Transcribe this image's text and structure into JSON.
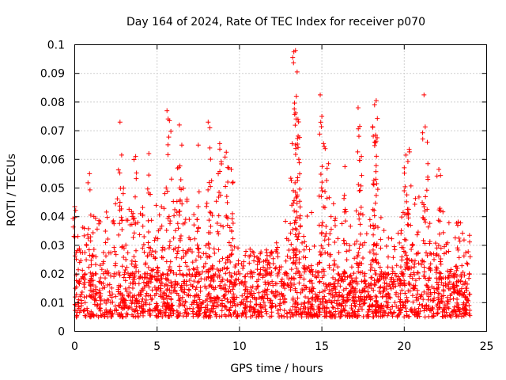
{
  "chart_data": {
    "type": "scatter",
    "title": "Day 164 of 2024, Rate Of TEC Index for receiver p070",
    "xlabel": "GPS time / hours",
    "ylabel": "ROTI / TECUs",
    "xlim": [
      0,
      25
    ],
    "ylim": [
      0,
      0.1
    ],
    "xticks": [
      0,
      5,
      10,
      15,
      20,
      25
    ],
    "xtick_labels": [
      "0",
      "5",
      "10",
      "15",
      "20",
      "25"
    ],
    "yticks": [
      0,
      0.01,
      0.02,
      0.03,
      0.04,
      0.05,
      0.06,
      0.07,
      0.08,
      0.09,
      0.1
    ],
    "ytick_labels": [
      "0",
      "0.01",
      "0.02",
      "0.03",
      "0.04",
      "0.05",
      "0.06",
      "0.07",
      "0.08",
      "0.09",
      "0.1"
    ],
    "grid": true,
    "marker": "+",
    "marker_color": "#ff0000",
    "data_range_x": [
      0,
      24
    ],
    "series": [
      {
        "name": "ROTI",
        "typical_value": 0.012,
        "dense_band": [
          0.005,
          0.02
        ],
        "envelope": [
          [
            0,
            0.034
          ],
          [
            1,
            0.04
          ],
          [
            2,
            0.042
          ],
          [
            3,
            0.05
          ],
          [
            4,
            0.05
          ],
          [
            5,
            0.045
          ],
          [
            6,
            0.055
          ],
          [
            7,
            0.045
          ],
          [
            8,
            0.045
          ],
          [
            9,
            0.05
          ],
          [
            10,
            0.03
          ],
          [
            11,
            0.028
          ],
          [
            12,
            0.03
          ],
          [
            13,
            0.045
          ],
          [
            14,
            0.05
          ],
          [
            15,
            0.048
          ],
          [
            16,
            0.045
          ],
          [
            17,
            0.04
          ],
          [
            18,
            0.045
          ],
          [
            19,
            0.04
          ],
          [
            20,
            0.042
          ],
          [
            21,
            0.05
          ],
          [
            22,
            0.045
          ],
          [
            23,
            0.04
          ],
          [
            24,
            0.035
          ]
        ],
        "spikes": [
          {
            "x": 0.0,
            "y": 0.0435
          },
          {
            "x": 0.9,
            "y": 0.055
          },
          {
            "x": 2.75,
            "y": 0.073
          },
          {
            "x": 2.85,
            "y": 0.0615
          },
          {
            "x": 3.7,
            "y": 0.061
          },
          {
            "x": 4.5,
            "y": 0.062
          },
          {
            "x": 5.6,
            "y": 0.077
          },
          {
            "x": 5.75,
            "y": 0.0735
          },
          {
            "x": 6.35,
            "y": 0.072
          },
          {
            "x": 6.5,
            "y": 0.065
          },
          {
            "x": 7.5,
            "y": 0.065
          },
          {
            "x": 8.1,
            "y": 0.073
          },
          {
            "x": 8.2,
            "y": 0.064
          },
          {
            "x": 8.8,
            "y": 0.0655
          },
          {
            "x": 9.2,
            "y": 0.0625
          },
          {
            "x": 9.35,
            "y": 0.057
          },
          {
            "x": 9.5,
            "y": 0.0565
          },
          {
            "x": 13.3,
            "y": 0.0975
          },
          {
            "x": 13.4,
            "y": 0.098
          },
          {
            "x": 13.5,
            "y": 0.0905
          },
          {
            "x": 13.45,
            "y": 0.082
          },
          {
            "x": 13.55,
            "y": 0.074
          },
          {
            "x": 13.2,
            "y": 0.0655
          },
          {
            "x": 13.6,
            "y": 0.06
          },
          {
            "x": 14.9,
            "y": 0.0825
          },
          {
            "x": 15.0,
            "y": 0.075
          },
          {
            "x": 15.1,
            "y": 0.0655
          },
          {
            "x": 15.4,
            "y": 0.0585
          },
          {
            "x": 16.4,
            "y": 0.0575
          },
          {
            "x": 17.2,
            "y": 0.078
          },
          {
            "x": 17.3,
            "y": 0.0715
          },
          {
            "x": 17.4,
            "y": 0.061
          },
          {
            "x": 18.2,
            "y": 0.079
          },
          {
            "x": 18.3,
            "y": 0.0805
          },
          {
            "x": 18.2,
            "y": 0.066
          },
          {
            "x": 20.1,
            "y": 0.0615
          },
          {
            "x": 20.3,
            "y": 0.0635
          },
          {
            "x": 21.2,
            "y": 0.0825
          },
          {
            "x": 21.4,
            "y": 0.066
          },
          {
            "x": 22.1,
            "y": 0.0565
          }
        ]
      }
    ]
  }
}
